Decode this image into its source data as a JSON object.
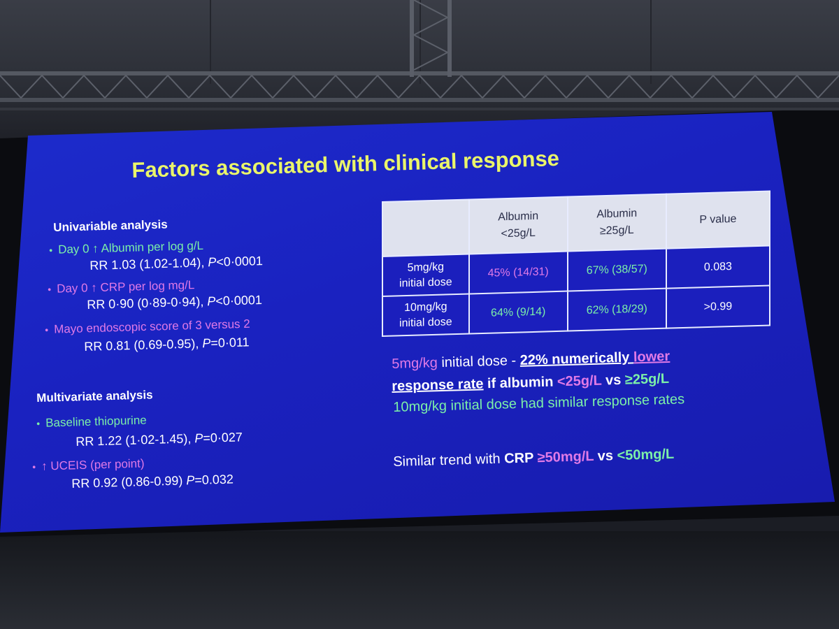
{
  "slide": {
    "title": "Factors associated with clinical response",
    "univariable": {
      "header": "Univariable analysis",
      "items": [
        {
          "label": "Day 0 ↑ Albumin per log g/L",
          "stat_prefix": "RR 1.03 (1.02-1.04), ",
          "p_label": "P",
          "p_value": "<0·0001"
        },
        {
          "label": "Day 0 ↑ CRP per log mg/L",
          "stat_prefix": "RR 0·90 (0·89-0·94), ",
          "p_label": "P",
          "p_value": "<0·0001"
        },
        {
          "label": "Mayo endoscopic score of 3 versus 2",
          "stat_prefix": "RR 0.81 (0.69-0.95), ",
          "p_label": "P",
          "p_value": "=0·011"
        }
      ]
    },
    "multivariate": {
      "header": "Multivariate analysis",
      "items": [
        {
          "label": "Baseline thiopurine",
          "stat_prefix": "RR 1.22 (1·02-1.45), ",
          "p_label": "P",
          "p_value": "=0·027"
        },
        {
          "label": "↑ UCEIS (per point)",
          "stat_prefix": "RR 0.92 (0.86-0.99) ",
          "p_label": "P",
          "p_value": "=0.032"
        }
      ]
    },
    "bullet": "•",
    "table": {
      "headers": [
        "",
        "Albumin\n<25g/L",
        "Albumin\n≥25g/L",
        "P value"
      ],
      "header_line1": [
        "",
        "Albumin",
        "Albumin",
        "P value"
      ],
      "header_line2": [
        "",
        "<25g/L",
        "≥25g/L",
        ""
      ],
      "rows": [
        {
          "dose_line1": "5mg/kg",
          "dose_line2": "initial dose",
          "low": "45% (14/31)",
          "high": "67% (38/57)",
          "p": "0.083"
        },
        {
          "dose_line1": "10mg/kg",
          "dose_line2": "initial dose",
          "low": "64% (9/14)",
          "high": "62% (18/29)",
          "p": ">0.99"
        }
      ]
    },
    "notes": {
      "line1_a": "5mg/kg",
      "line1_b": " initial dose - ",
      "line1_c": "22% numerically ",
      "line1_d": "lower",
      "line2_a": "response rate",
      "line2_b": " if albumin ",
      "line2_c": "<25g/L",
      "line2_d": " vs ",
      "line2_e": "≥25g/L",
      "line3": "10mg/kg initial dose had similar response rates",
      "line4_a": "Similar trend with ",
      "line4_b": "CRP ",
      "line4_c": "≥50mg/L",
      "line4_d": " vs ",
      "line4_e": "<50mg/L"
    },
    "colors": {
      "background": "#1a22c0",
      "title": "#eaf56a",
      "green": "#7cf0a8",
      "pink": "#e07ae6",
      "white": "#ffffff"
    }
  }
}
